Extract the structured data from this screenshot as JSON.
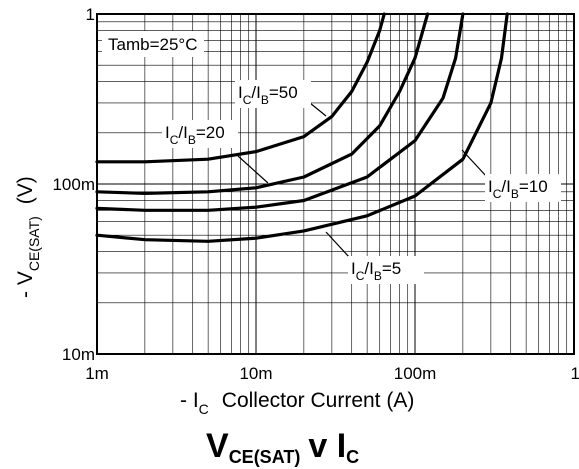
{
  "chart_data": {
    "type": "line",
    "x_scale": "log",
    "y_scale": "log",
    "xlim": [
      0.001,
      1
    ],
    "ylim": [
      0.01,
      1
    ],
    "grid": true,
    "x_ticks": [
      {
        "value": 0.001,
        "label": "1m"
      },
      {
        "value": 0.01,
        "label": "10m"
      },
      {
        "value": 0.1,
        "label": "100m"
      },
      {
        "value": 1,
        "label": "1"
      }
    ],
    "y_ticks": [
      {
        "value": 0.01,
        "label": "10m"
      },
      {
        "value": 0.1,
        "label": "100m"
      },
      {
        "value": 1,
        "label": "1"
      }
    ],
    "annotation": "Tamb=25°C",
    "xlabel": {
      "prefix": "- I",
      "sub": "C",
      "text": "Collector Current (A)"
    },
    "ylabel": {
      "prefix": "- V",
      "sub": "CE(SAT)",
      "text": "(V)"
    },
    "title": {
      "main": "V",
      "sub": "CE(SAT)",
      "rest": "v I",
      "sub2": "C"
    },
    "series": [
      {
        "name": "IC/IB=50",
        "label": {
          "a": "I",
          "s1": "C",
          "b": "/I",
          "s2": "B",
          "c": "=50"
        },
        "points": [
          [
            0.001,
            0.135
          ],
          [
            0.002,
            0.135
          ],
          [
            0.005,
            0.14
          ],
          [
            0.01,
            0.155
          ],
          [
            0.02,
            0.19
          ],
          [
            0.03,
            0.25
          ],
          [
            0.04,
            0.35
          ],
          [
            0.05,
            0.52
          ],
          [
            0.06,
            0.8
          ],
          [
            0.064,
            1.0
          ]
        ]
      },
      {
        "name": "IC/IB=20",
        "label": {
          "a": "I",
          "s1": "C",
          "b": "/I",
          "s2": "B",
          "c": "=20"
        },
        "points": [
          [
            0.001,
            0.09
          ],
          [
            0.002,
            0.088
          ],
          [
            0.005,
            0.09
          ],
          [
            0.01,
            0.095
          ],
          [
            0.02,
            0.11
          ],
          [
            0.04,
            0.15
          ],
          [
            0.06,
            0.22
          ],
          [
            0.08,
            0.35
          ],
          [
            0.1,
            0.55
          ],
          [
            0.12,
            1.0
          ]
        ]
      },
      {
        "name": "IC/IB=10",
        "label": {
          "a": "I",
          "s1": "C",
          "b": "/I",
          "s2": "B",
          "c": "=10"
        },
        "points": [
          [
            0.001,
            0.072
          ],
          [
            0.002,
            0.07
          ],
          [
            0.005,
            0.07
          ],
          [
            0.01,
            0.073
          ],
          [
            0.02,
            0.08
          ],
          [
            0.05,
            0.11
          ],
          [
            0.1,
            0.18
          ],
          [
            0.15,
            0.32
          ],
          [
            0.18,
            0.55
          ],
          [
            0.2,
            1.0
          ]
        ]
      },
      {
        "name": "IC/IB=5",
        "label": {
          "a": "I",
          "s1": "C",
          "b": "/I",
          "s2": "B",
          "c": "=5"
        },
        "points": [
          [
            0.001,
            0.05
          ],
          [
            0.002,
            0.047
          ],
          [
            0.005,
            0.046
          ],
          [
            0.01,
            0.048
          ],
          [
            0.02,
            0.053
          ],
          [
            0.05,
            0.065
          ],
          [
            0.1,
            0.085
          ],
          [
            0.2,
            0.14
          ],
          [
            0.3,
            0.3
          ],
          [
            0.35,
            0.55
          ],
          [
            0.38,
            1.0
          ]
        ]
      }
    ]
  }
}
